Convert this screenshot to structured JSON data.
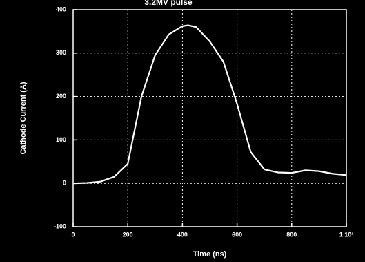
{
  "chart_data": {
    "type": "line",
    "title": "3.2MV pulse",
    "x_label": "Time (ns)",
    "y_label": "Cathode Current (A)",
    "x": [
      0,
      50,
      100,
      150,
      200,
      250,
      300,
      350,
      400,
      420,
      450,
      500,
      550,
      600,
      650,
      700,
      750,
      800,
      850,
      900,
      950,
      1000
    ],
    "series": [
      {
        "name": "Cathode Current",
        "color": "#ffffff",
        "values": [
          0,
          1,
          4,
          15,
          45,
          200,
          295,
          343,
          362,
          364,
          360,
          327,
          280,
          183,
          72,
          32,
          25,
          24,
          30,
          28,
          22,
          19
        ]
      }
    ],
    "xlim": [
      0,
      1000
    ],
    "xticks": [
      0,
      200,
      400,
      600,
      800,
      {
        "value": 1000,
        "label": "1 10³"
      }
    ],
    "ylim": [
      -100,
      400
    ],
    "yticks": [
      -100,
      0,
      100,
      200,
      300,
      400
    ],
    "grid": true
  }
}
